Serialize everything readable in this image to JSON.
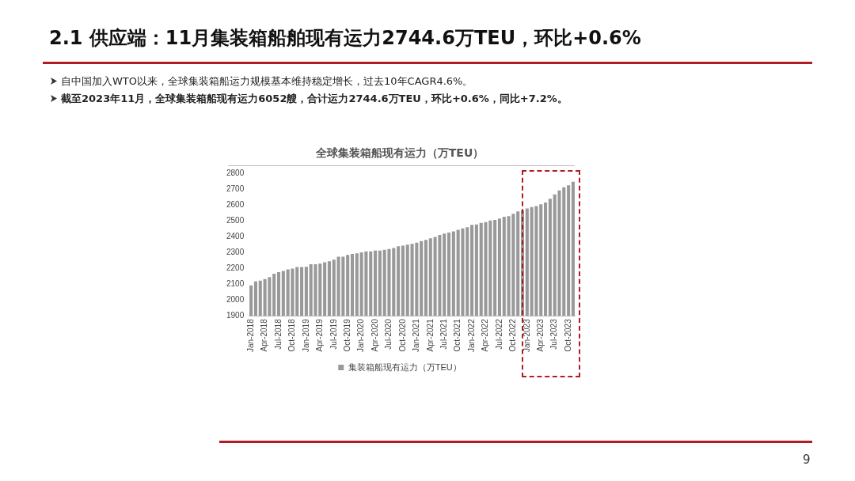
{
  "chart_data": {
    "type": "bar",
    "title": "全球集装箱船现有运力（万TEU）",
    "annotations": [
      "2.1  供应端：11月集装箱船舶现有运力2744.6万TEU，环比+0.6%",
      "自中国加入WTO以来，全球集装箱船运力规模基本维持稳定增长，过去10年CAGR4.6%。",
      "截至2023年11月，全球集装箱船现有运力6052艘，合计运力2744.6万TEU，环比+0.6%，同比+7.2%。",
      "9"
    ],
    "categories": [
      "Jan-2018",
      null,
      null,
      "Apr-2018",
      null,
      null,
      "Jul-2018",
      null,
      null,
      "Oct-2018",
      null,
      null,
      "Jan-2019",
      null,
      null,
      "Apr-2019",
      null,
      null,
      "Jul-2019",
      null,
      null,
      "Oct-2019",
      null,
      null,
      "Jan-2020",
      null,
      null,
      "Apr-2020",
      null,
      null,
      "Jul-2020",
      null,
      null,
      "Oct-2020",
      null,
      null,
      "Jan-2021",
      null,
      null,
      "Apr-2021",
      null,
      null,
      "Jul-2021",
      null,
      null,
      "Oct-2021",
      null,
      null,
      "Jan-2022",
      null,
      null,
      "Apr-2022",
      null,
      null,
      "Jul-2022",
      null,
      null,
      "Oct-2022",
      null,
      null,
      "Jan-2023",
      null,
      null,
      "Apr-2023",
      null,
      null,
      "Jul-2023",
      null,
      null,
      "Oct-2023",
      null
    ],
    "series": [
      {
        "name": "集装箱船现有运力（万TEU）",
        "color": "#999999",
        "values": [
          2092,
          2117,
          2122,
          2132,
          2145,
          2166,
          2176,
          2183,
          2193,
          2198,
          2208,
          2208,
          2210,
          2225,
          2225,
          2229,
          2238,
          2244,
          2254,
          2273,
          2273,
          2284,
          2290,
          2294,
          2301,
          2307,
          2307,
          2311,
          2311,
          2316,
          2322,
          2328,
          2339,
          2343,
          2349,
          2354,
          2362,
          2371,
          2379,
          2389,
          2398,
          2410,
          2419,
          2425,
          2432,
          2442,
          2451,
          2459,
          2474,
          2476,
          2486,
          2491,
          2501,
          2505,
          2514,
          2525,
          2529,
          2543,
          2558,
          2565,
          2577,
          2586,
          2592,
          2603,
          2615,
          2638,
          2666,
          2691,
          2710,
          2723,
          2745
        ]
      }
    ],
    "ylim": [
      1900,
      2800
    ],
    "yticks": [
      1900,
      2000,
      2100,
      2200,
      2300,
      2400,
      2500,
      2600,
      2700,
      2800
    ],
    "grid": false,
    "legend": "bottom"
  }
}
